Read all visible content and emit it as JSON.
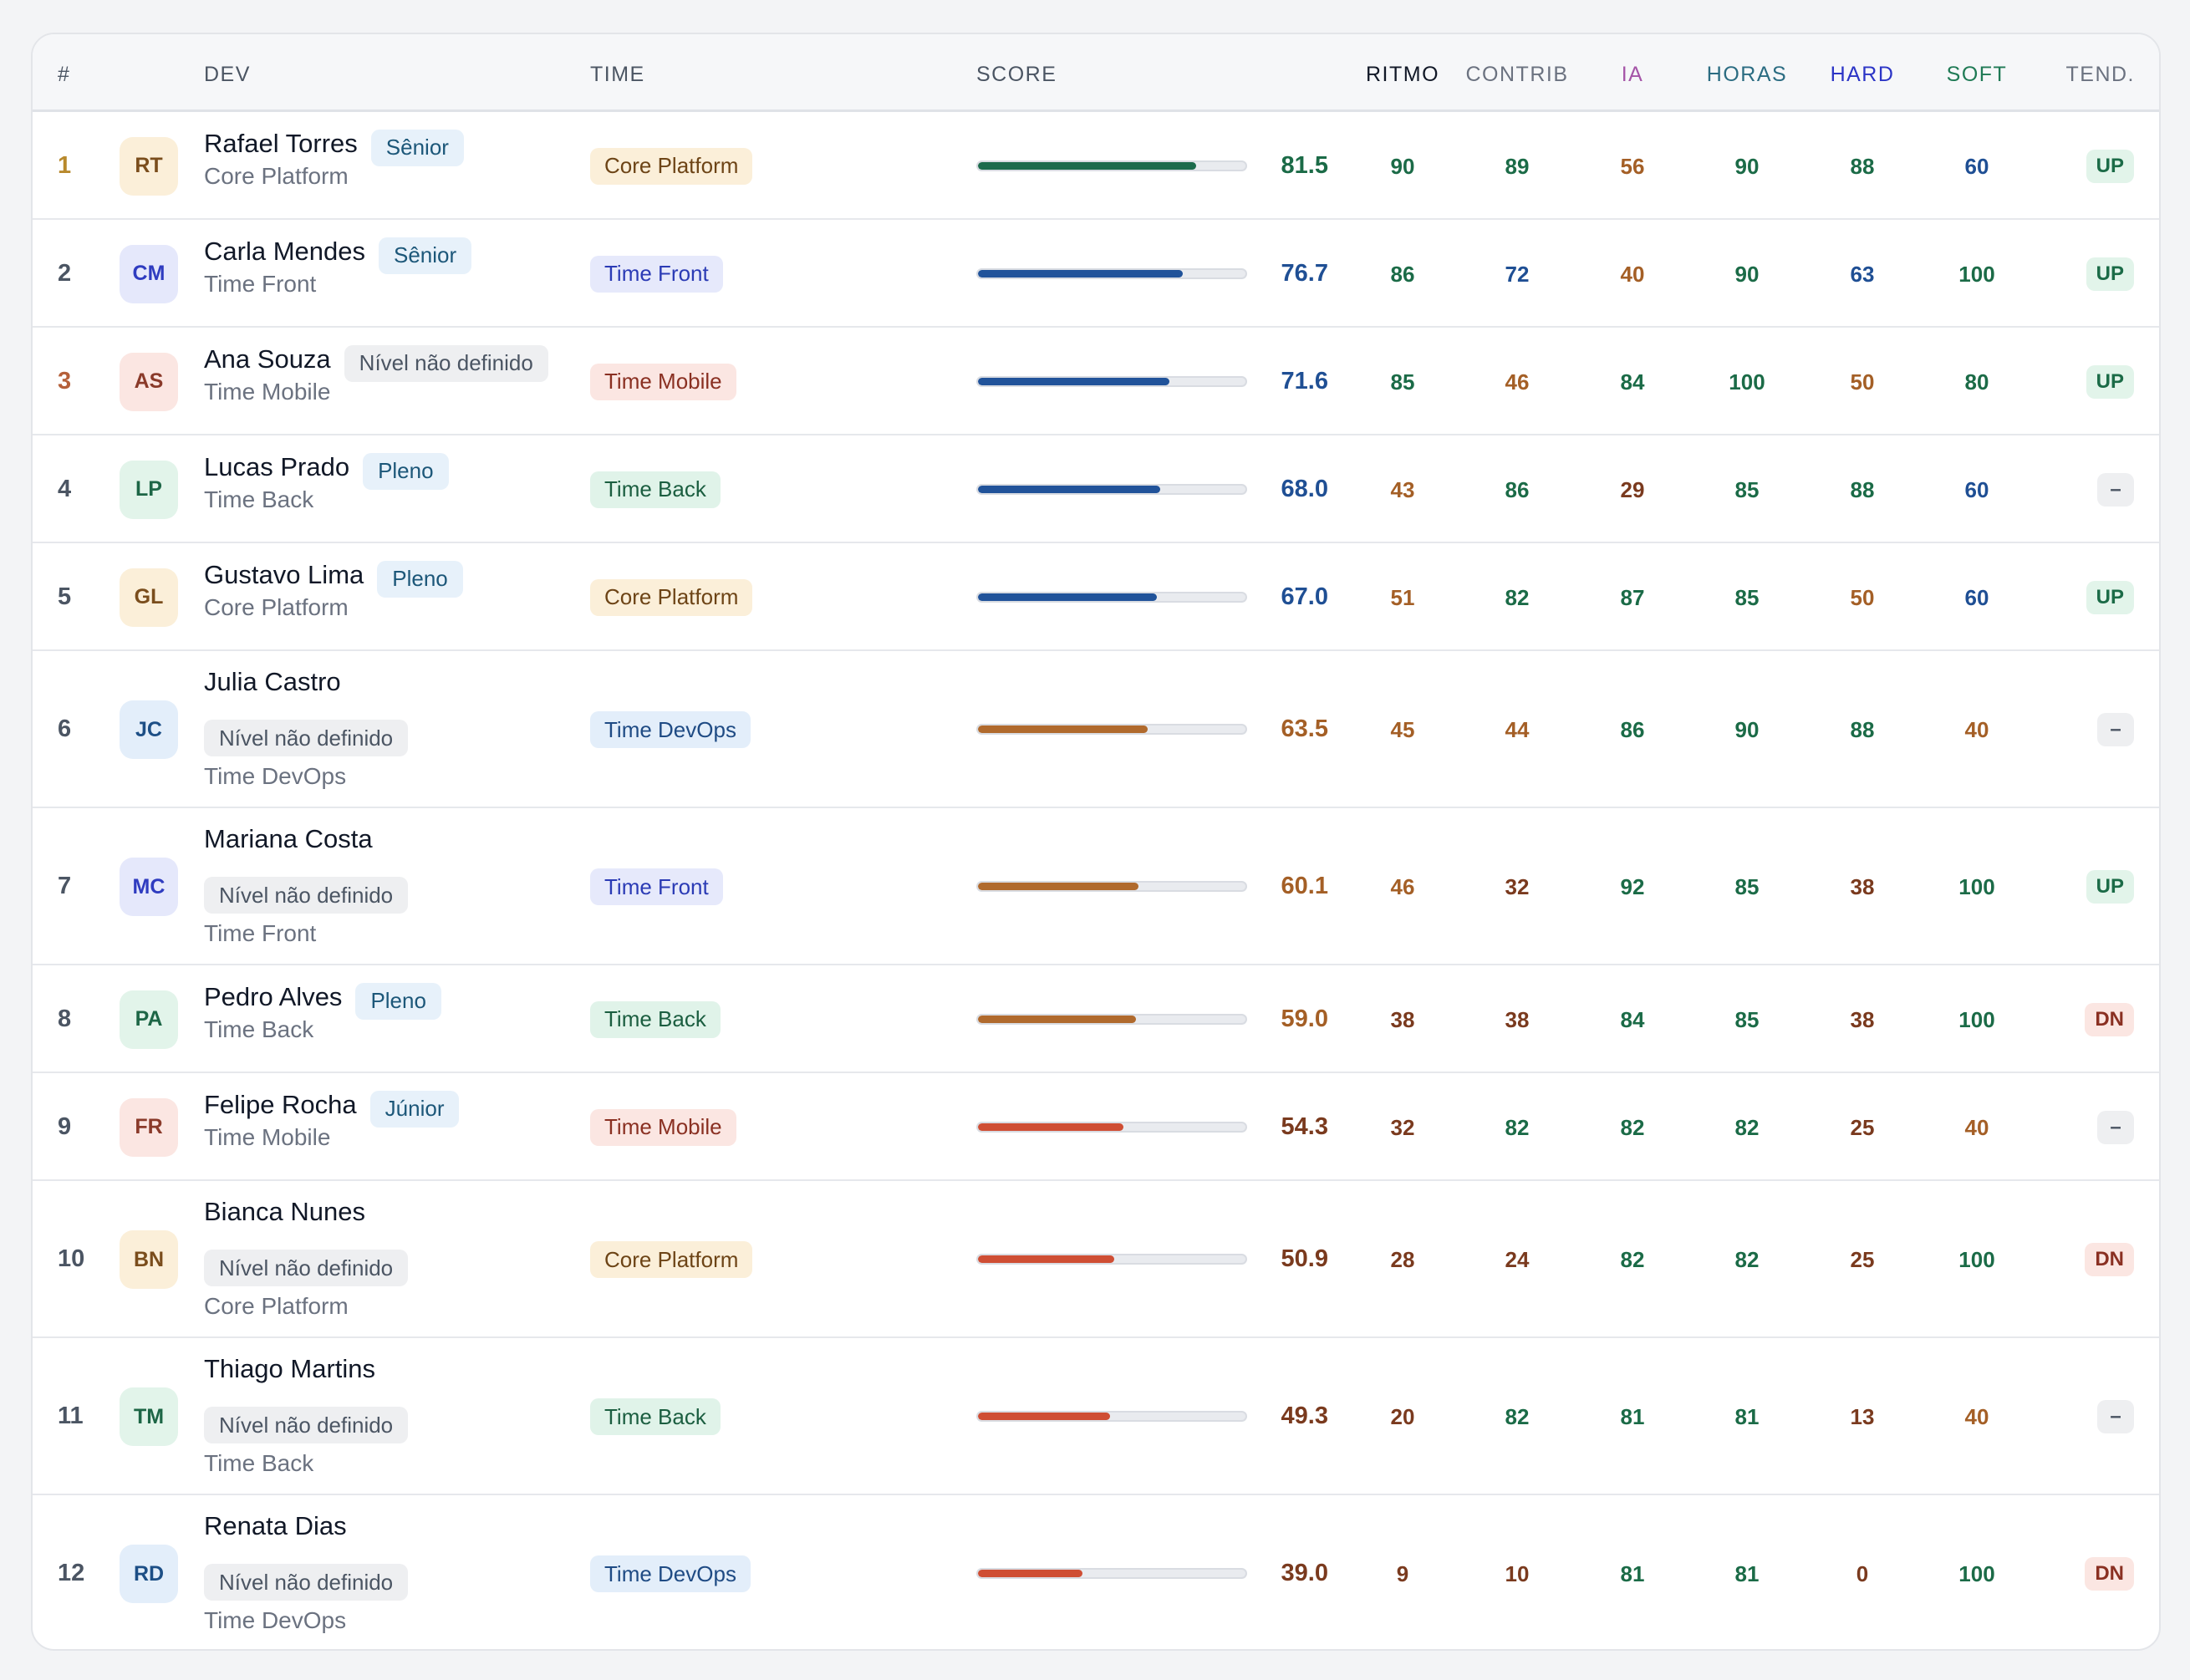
{
  "colors": {
    "good": "#1b6b47",
    "ok": "#1f4f94",
    "mid": "#a45f26",
    "bad": "#7a3a1e",
    "rank_gold": "#b8892c",
    "rank_bronze": "#b5603a",
    "rank_default": "#4b5563",
    "bar_green": "#1c6b4c",
    "bar_blue": "#21539a",
    "bar_amber": "#b06a2d",
    "bar_red": "#cf4e34"
  },
  "header": {
    "rank": "#",
    "dev": "DEV",
    "time": "TIME",
    "score": "SCORE",
    "ritmo": "RITMO",
    "contrib": "CONTRIB",
    "ia": "IA",
    "horas": "HORAS",
    "hard": "HARD",
    "soft": "SOFT",
    "tend": "TEND.",
    "colors": {
      "ritmo": "#111827",
      "contrib": "#6b7280",
      "ia": "#a555a8",
      "horas": "#2b6c82",
      "hard": "#2c35c6",
      "soft": "#1f7a55",
      "tend": "#6b7280"
    }
  },
  "rows": [
    {
      "rank": "1",
      "initials": "RT",
      "avatar": "amber",
      "name": "Rafael Torres",
      "level": "Sênior",
      "level_kind": "senior",
      "sub": "Core Platform",
      "team": "Core Platform",
      "team_kind": "core",
      "score": 81.5,
      "score_text": "81.5",
      "ritmo": "90",
      "contrib": "89",
      "ia": "56",
      "horas": "90",
      "hard": "88",
      "soft": "60",
      "trend": "UP"
    },
    {
      "rank": "2",
      "initials": "CM",
      "avatar": "indigo",
      "name": "Carla Mendes",
      "level": "Sênior",
      "level_kind": "senior",
      "sub": "Time Front",
      "team": "Time Front",
      "team_kind": "front",
      "score": 76.7,
      "score_text": "76.7",
      "ritmo": "86",
      "contrib": "72",
      "ia": "40",
      "horas": "90",
      "hard": "63",
      "soft": "100",
      "trend": "UP"
    },
    {
      "rank": "3",
      "initials": "AS",
      "avatar": "rose",
      "name": "Ana Souza",
      "level": "Nível não definido",
      "level_kind": "undefined",
      "sub": "Time Mobile",
      "team": "Time Mobile",
      "team_kind": "mobile",
      "score": 71.6,
      "score_text": "71.6",
      "ritmo": "85",
      "contrib": "46",
      "ia": "84",
      "horas": "100",
      "hard": "50",
      "soft": "80",
      "trend": "UP"
    },
    {
      "rank": "4",
      "initials": "LP",
      "avatar": "green",
      "name": "Lucas Prado",
      "level": "Pleno",
      "level_kind": "pleno",
      "sub": "Time Back",
      "team": "Time Back",
      "team_kind": "back",
      "score": 68.0,
      "score_text": "68.0",
      "ritmo": "43",
      "contrib": "86",
      "ia": "29",
      "horas": "85",
      "hard": "88",
      "soft": "60",
      "trend": "–"
    },
    {
      "rank": "5",
      "initials": "GL",
      "avatar": "amber",
      "name": "Gustavo Lima",
      "level": "Pleno",
      "level_kind": "pleno",
      "sub": "Core Platform",
      "team": "Core Platform",
      "team_kind": "core",
      "score": 67.0,
      "score_text": "67.0",
      "ritmo": "51",
      "contrib": "82",
      "ia": "87",
      "horas": "85",
      "hard": "50",
      "soft": "60",
      "trend": "UP"
    },
    {
      "rank": "6",
      "initials": "JC",
      "avatar": "blue",
      "name": "Julia Castro",
      "level": "Nível não definido",
      "level_kind": "undefined",
      "sub": "Time DevOps",
      "team": "Time DevOps",
      "team_kind": "devops",
      "score": 63.5,
      "score_text": "63.5",
      "ritmo": "45",
      "contrib": "44",
      "ia": "86",
      "horas": "90",
      "hard": "88",
      "soft": "40",
      "trend": "–"
    },
    {
      "rank": "7",
      "initials": "MC",
      "avatar": "indigo",
      "name": "Mariana Costa",
      "level": "Nível não definido",
      "level_kind": "undefined",
      "sub": "Time Front",
      "team": "Time Front",
      "team_kind": "front",
      "score": 60.1,
      "score_text": "60.1",
      "ritmo": "46",
      "contrib": "32",
      "ia": "92",
      "horas": "85",
      "hard": "38",
      "soft": "100",
      "trend": "UP"
    },
    {
      "rank": "8",
      "initials": "PA",
      "avatar": "green",
      "name": "Pedro Alves",
      "level": "Pleno",
      "level_kind": "pleno",
      "sub": "Time Back",
      "team": "Time Back",
      "team_kind": "back",
      "score": 59.0,
      "score_text": "59.0",
      "ritmo": "38",
      "contrib": "38",
      "ia": "84",
      "horas": "85",
      "hard": "38",
      "soft": "100",
      "trend": "DN"
    },
    {
      "rank": "9",
      "initials": "FR",
      "avatar": "rose",
      "name": "Felipe Rocha",
      "level": "Júnior",
      "level_kind": "junior",
      "sub": "Time Mobile",
      "team": "Time Mobile",
      "team_kind": "mobile",
      "score": 54.3,
      "score_text": "54.3",
      "ritmo": "32",
      "contrib": "82",
      "ia": "82",
      "horas": "82",
      "hard": "25",
      "soft": "40",
      "trend": "–"
    },
    {
      "rank": "10",
      "initials": "BN",
      "avatar": "amber",
      "name": "Bianca Nunes",
      "level": "Nível não definido",
      "level_kind": "undefined",
      "sub": "Core Platform",
      "team": "Core Platform",
      "team_kind": "core",
      "score": 50.9,
      "score_text": "50.9",
      "ritmo": "28",
      "contrib": "24",
      "ia": "82",
      "horas": "82",
      "hard": "25",
      "soft": "100",
      "trend": "DN"
    },
    {
      "rank": "11",
      "initials": "TM",
      "avatar": "green",
      "name": "Thiago Martins",
      "level": "Nível não definido",
      "level_kind": "undefined",
      "sub": "Time Back",
      "team": "Time Back",
      "team_kind": "back",
      "score": 49.3,
      "score_text": "49.3",
      "ritmo": "20",
      "contrib": "82",
      "ia": "81",
      "horas": "81",
      "hard": "13",
      "soft": "40",
      "trend": "–"
    },
    {
      "rank": "12",
      "initials": "RD",
      "avatar": "blue",
      "name": "Renata Dias",
      "level": "Nível não definido",
      "level_kind": "undefined",
      "sub": "Time DevOps",
      "team": "Time DevOps",
      "team_kind": "devops",
      "score": 39.0,
      "score_text": "39.0",
      "ritmo": "9",
      "contrib": "10",
      "ia": "81",
      "horas": "81",
      "hard": "0",
      "soft": "100",
      "trend": "DN"
    }
  ]
}
